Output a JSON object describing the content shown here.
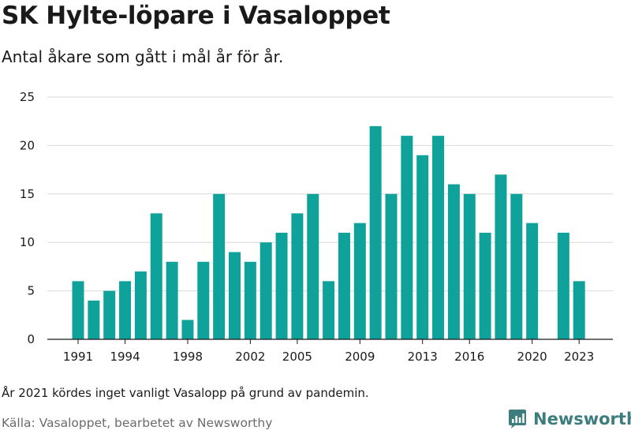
{
  "header": {
    "title": "SK Hylte-löpare i Vasaloppet",
    "subtitle": "Antal åkare som gått i mål år för år."
  },
  "footer": {
    "note": "År 2021 kördes inget vanligt Vasalopp på grund av pandemin.",
    "source": "Källa: Vasaloppet, bearbetet av Newsworthy",
    "brand": "Newsworthy"
  },
  "colors": {
    "bar": "#0fa29b",
    "grid": "#d9d9d9",
    "brand": "#3d7d7d"
  },
  "chart_data": {
    "type": "bar",
    "title": "SK Hylte-löpare i Vasaloppet",
    "subtitle": "Antal åkare som gått i mål år för år.",
    "x": [
      1991,
      1992,
      1993,
      1994,
      1995,
      1996,
      1997,
      1998,
      1999,
      2000,
      2001,
      2002,
      2003,
      2004,
      2005,
      2006,
      2007,
      2008,
      2009,
      2010,
      2011,
      2012,
      2013,
      2014,
      2015,
      2016,
      2017,
      2018,
      2019,
      2020,
      2021,
      2022,
      2023
    ],
    "values": [
      6,
      4,
      5,
      6,
      7,
      13,
      8,
      2,
      8,
      15,
      9,
      8,
      10,
      11,
      13,
      15,
      6,
      11,
      12,
      22,
      15,
      21,
      19,
      21,
      16,
      15,
      11,
      17,
      15,
      12,
      0,
      11,
      6
    ],
    "x_tick_labels": [
      "1991",
      "1994",
      "1998",
      "2002",
      "2005",
      "2009",
      "2013",
      "2016",
      "2020",
      "2023"
    ],
    "y_ticks": [
      0,
      5,
      10,
      15,
      20,
      25
    ],
    "ylim": [
      0,
      25
    ],
    "xlabel": "",
    "ylabel": "",
    "grid": true
  }
}
